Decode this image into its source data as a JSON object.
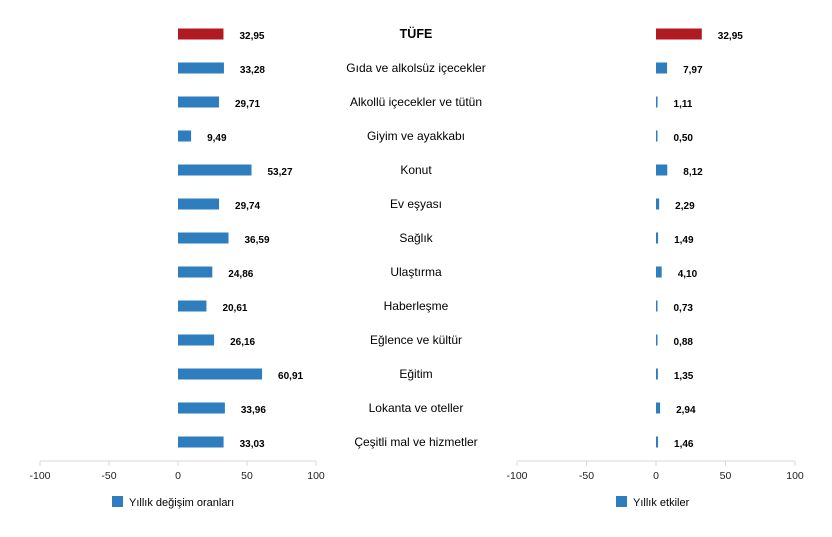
{
  "colors": {
    "highlight": "#b11a22",
    "bar": "#2e7dbf",
    "axis": "#d9d9d9",
    "text": "#000000"
  },
  "legend": {
    "left": "Yıllık değişim oranları",
    "right": "Yıllık etkiler"
  },
  "chart_data": [
    {
      "type": "bar",
      "orientation": "horizontal",
      "categories": [
        "TÜFE",
        "Gıda ve alkolsüz içecekler",
        "Alkollü içecekler ve tütün",
        "Giyim ve ayakkabı",
        "Konut",
        "Ev eşyası",
        "Sağlık",
        "Ulaştırma",
        "Haberleşme",
        "Eğlence ve kültür",
        "Eğitim",
        "Lokanta ve oteller",
        "Çeşitli mal ve hizmetler"
      ],
      "series": [
        {
          "name": "Yıllık değişim oranları",
          "values": [
            32.95,
            33.28,
            29.71,
            9.49,
            53.27,
            29.74,
            36.59,
            24.86,
            20.61,
            26.16,
            60.91,
            33.96,
            33.03
          ]
        }
      ],
      "value_labels": [
        "32,95",
        "33,28",
        "29,71",
        "9,49",
        "53,27",
        "29,74",
        "36,59",
        "24,86",
        "20,61",
        "26,16",
        "60,91",
        "33,96",
        "33,03"
      ],
      "xlim": [
        -100,
        100
      ],
      "xticks": [
        "-100",
        "-50",
        "0",
        "50",
        "100"
      ],
      "highlight_index": 0,
      "legend": "bottom-left"
    },
    {
      "type": "bar",
      "orientation": "horizontal",
      "categories": [
        "TÜFE",
        "Gıda ve alkolsüz içecekler",
        "Alkollü içecekler ve tütün",
        "Giyim ve ayakkabı",
        "Konut",
        "Ev eşyası",
        "Sağlık",
        "Ulaştırma",
        "Haberleşme",
        "Eğlence ve kültür",
        "Eğitim",
        "Lokanta ve oteller",
        "Çeşitli mal ve hizmetler"
      ],
      "series": [
        {
          "name": "Yıllık etkiler",
          "values": [
            32.95,
            7.97,
            1.11,
            0.5,
            8.12,
            2.29,
            1.49,
            4.1,
            0.73,
            0.88,
            1.35,
            2.94,
            1.46
          ]
        }
      ],
      "value_labels": [
        "32,95",
        "7,97",
        "1,11",
        "0,50",
        "8,12",
        "2,29",
        "1,49",
        "4,10",
        "0,73",
        "0,88",
        "1,35",
        "2,94",
        "1,46"
      ],
      "xlim": [
        -100,
        100
      ],
      "xticks": [
        "-100",
        "-50",
        "0",
        "50",
        "100"
      ],
      "highlight_index": 0,
      "legend": "bottom-left"
    }
  ]
}
